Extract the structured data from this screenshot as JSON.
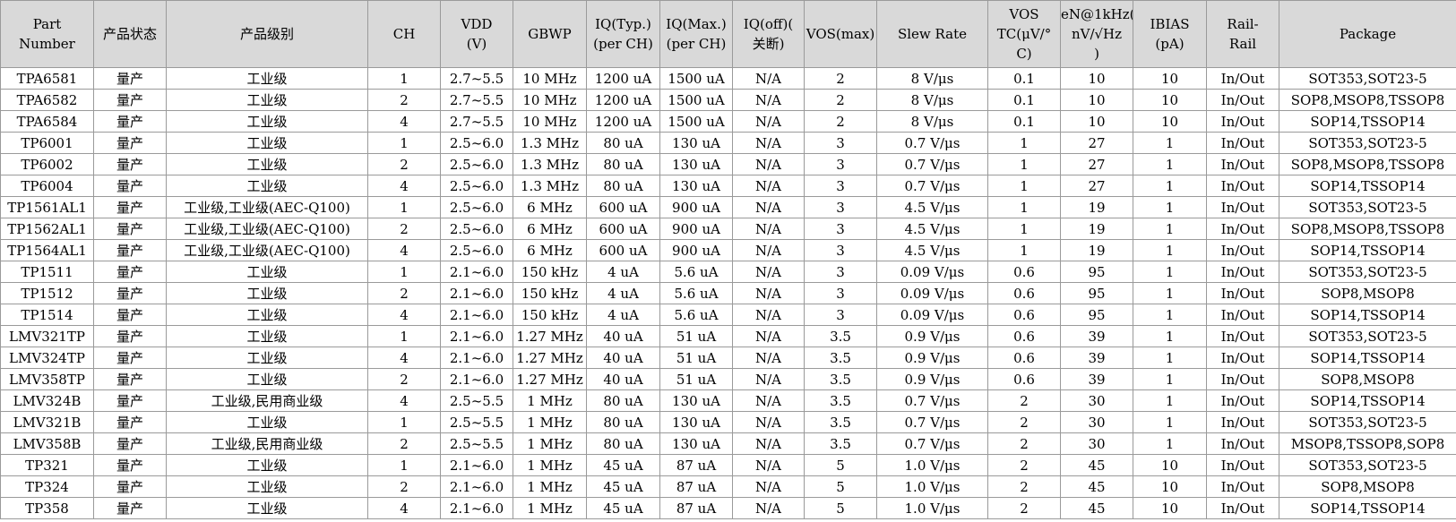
{
  "table": {
    "header": [
      "Part\nNumber",
      "产品状态",
      "产品级别",
      "CH",
      "VDD\n(V)",
      "GBWP",
      "IQ(Typ.)\n(per CH)",
      "IQ(Max.)\n(per CH)",
      "IQ(off)(\n关断)",
      "VOS(max)",
      "Slew Rate",
      "VOS\nTC(μV/°\nC)",
      "eN@1kHz(\nnV/√Hz\n)",
      "IBIAS\n(pA)",
      "Rail-\nRail",
      "Package"
    ],
    "rows": [
      [
        "TPA6581",
        "量产",
        "工业级",
        "1",
        "2.7~5.5",
        "10 MHz",
        "1200 uA",
        "1500 uA",
        "N/A",
        "2",
        "8 V/μs",
        "0.1",
        "10",
        "10",
        "In/Out",
        "SOT353,SOT23-5"
      ],
      [
        "TPA6582",
        "量产",
        "工业级",
        "2",
        "2.7~5.5",
        "10 MHz",
        "1200 uA",
        "1500 uA",
        "N/A",
        "2",
        "8 V/μs",
        "0.1",
        "10",
        "10",
        "In/Out",
        "SOP8,MSOP8,TSSOP8"
      ],
      [
        "TPA6584",
        "量产",
        "工业级",
        "4",
        "2.7~5.5",
        "10 MHz",
        "1200 uA",
        "1500 uA",
        "N/A",
        "2",
        "8 V/μs",
        "0.1",
        "10",
        "10",
        "In/Out",
        "SOP14,TSSOP14"
      ],
      [
        "TP6001",
        "量产",
        "工业级",
        "1",
        "2.5~6.0",
        "1.3 MHz",
        "80 uA",
        "130 uA",
        "N/A",
        "3",
        "0.7 V/μs",
        "1",
        "27",
        "1",
        "In/Out",
        "SOT353,SOT23-5"
      ],
      [
        "TP6002",
        "量产",
        "工业级",
        "2",
        "2.5~6.0",
        "1.3 MHz",
        "80 uA",
        "130 uA",
        "N/A",
        "3",
        "0.7 V/μs",
        "1",
        "27",
        "1",
        "In/Out",
        "SOP8,MSOP8,TSSOP8"
      ],
      [
        "TP6004",
        "量产",
        "工业级",
        "4",
        "2.5~6.0",
        "1.3 MHz",
        "80 uA",
        "130 uA",
        "N/A",
        "3",
        "0.7 V/μs",
        "1",
        "27",
        "1",
        "In/Out",
        "SOP14,TSSOP14"
      ],
      [
        "TP1561AL1",
        "量产",
        "工业级,工业级(AEC-Q100)",
        "1",
        "2.5~6.0",
        "6 MHz",
        "600 uA",
        "900 uA",
        "N/A",
        "3",
        "4.5 V/μs",
        "1",
        "19",
        "1",
        "In/Out",
        "SOT353,SOT23-5"
      ],
      [
        "TP1562AL1",
        "量产",
        "工业级,工业级(AEC-Q100)",
        "2",
        "2.5~6.0",
        "6 MHz",
        "600 uA",
        "900 uA",
        "N/A",
        "3",
        "4.5 V/μs",
        "1",
        "19",
        "1",
        "In/Out",
        "SOP8,MSOP8,TSSOP8"
      ],
      [
        "TP1564AL1",
        "量产",
        "工业级,工业级(AEC-Q100)",
        "4",
        "2.5~6.0",
        "6 MHz",
        "600 uA",
        "900 uA",
        "N/A",
        "3",
        "4.5 V/μs",
        "1",
        "19",
        "1",
        "In/Out",
        "SOP14,TSSOP14"
      ],
      [
        "TP1511",
        "量产",
        "工业级",
        "1",
        "2.1~6.0",
        "150 kHz",
        "4 uA",
        "5.6 uA",
        "N/A",
        "3",
        "0.09 V/μs",
        "0.6",
        "95",
        "1",
        "In/Out",
        "SOT353,SOT23-5"
      ],
      [
        "TP1512",
        "量产",
        "工业级",
        "2",
        "2.1~6.0",
        "150 kHz",
        "4 uA",
        "5.6 uA",
        "N/A",
        "3",
        "0.09 V/μs",
        "0.6",
        "95",
        "1",
        "In/Out",
        "SOP8,MSOP8"
      ],
      [
        "TP1514",
        "量产",
        "工业级",
        "4",
        "2.1~6.0",
        "150 kHz",
        "4 uA",
        "5.6 uA",
        "N/A",
        "3",
        "0.09 V/μs",
        "0.6",
        "95",
        "1",
        "In/Out",
        "SOP14,TSSOP14"
      ],
      [
        "LMV321TP",
        "量产",
        "工业级",
        "1",
        "2.1~6.0",
        "1.27 MHz",
        "40 uA",
        "51 uA",
        "N/A",
        "3.5",
        "0.9 V/μs",
        "0.6",
        "39",
        "1",
        "In/Out",
        "SOT353,SOT23-5"
      ],
      [
        "LMV324TP",
        "量产",
        "工业级",
        "4",
        "2.1~6.0",
        "1.27 MHz",
        "40 uA",
        "51 uA",
        "N/A",
        "3.5",
        "0.9 V/μs",
        "0.6",
        "39",
        "1",
        "In/Out",
        "SOP14,TSSOP14"
      ],
      [
        "LMV358TP",
        "量产",
        "工业级",
        "2",
        "2.1~6.0",
        "1.27 MHz",
        "40 uA",
        "51 uA",
        "N/A",
        "3.5",
        "0.9 V/μs",
        "0.6",
        "39",
        "1",
        "In/Out",
        "SOP8,MSOP8"
      ],
      [
        "LMV324B",
        "量产",
        "工业级,民用商业级",
        "4",
        "2.5~5.5",
        "1 MHz",
        "80 uA",
        "130 uA",
        "N/A",
        "3.5",
        "0.7 V/μs",
        "2",
        "30",
        "1",
        "In/Out",
        "SOP14,TSSOP14"
      ],
      [
        "LMV321B",
        "量产",
        "工业级",
        "1",
        "2.5~5.5",
        "1 MHz",
        "80 uA",
        "130 uA",
        "N/A",
        "3.5",
        "0.7 V/μs",
        "2",
        "30",
        "1",
        "In/Out",
        "SOT353,SOT23-5"
      ],
      [
        "LMV358B",
        "量产",
        "工业级,民用商业级",
        "2",
        "2.5~5.5",
        "1 MHz",
        "80 uA",
        "130 uA",
        "N/A",
        "3.5",
        "0.7 V/μs",
        "2",
        "30",
        "1",
        "In/Out",
        "MSOP8,TSSOP8,SOP8"
      ],
      [
        "TP321",
        "量产",
        "工业级",
        "1",
        "2.1~6.0",
        "1 MHz",
        "45 uA",
        "87 uA",
        "N/A",
        "5",
        "1.0 V/μs",
        "2",
        "45",
        "10",
        "In/Out",
        "SOT353,SOT23-5"
      ],
      [
        "TP324",
        "量产",
        "工业级",
        "2",
        "2.1~6.0",
        "1 MHz",
        "45 uA",
        "87 uA",
        "N/A",
        "5",
        "1.0 V/μs",
        "2",
        "45",
        "10",
        "In/Out",
        "SOP8,MSOP8"
      ],
      [
        "TP358",
        "量产",
        "工业级",
        "4",
        "2.1~6.0",
        "1 MHz",
        "45 uA",
        "87 uA",
        "N/A",
        "5",
        "1.0 V/μs",
        "2",
        "45",
        "10",
        "In/Out",
        "SOP14,TSSOP14"
      ]
    ]
  }
}
